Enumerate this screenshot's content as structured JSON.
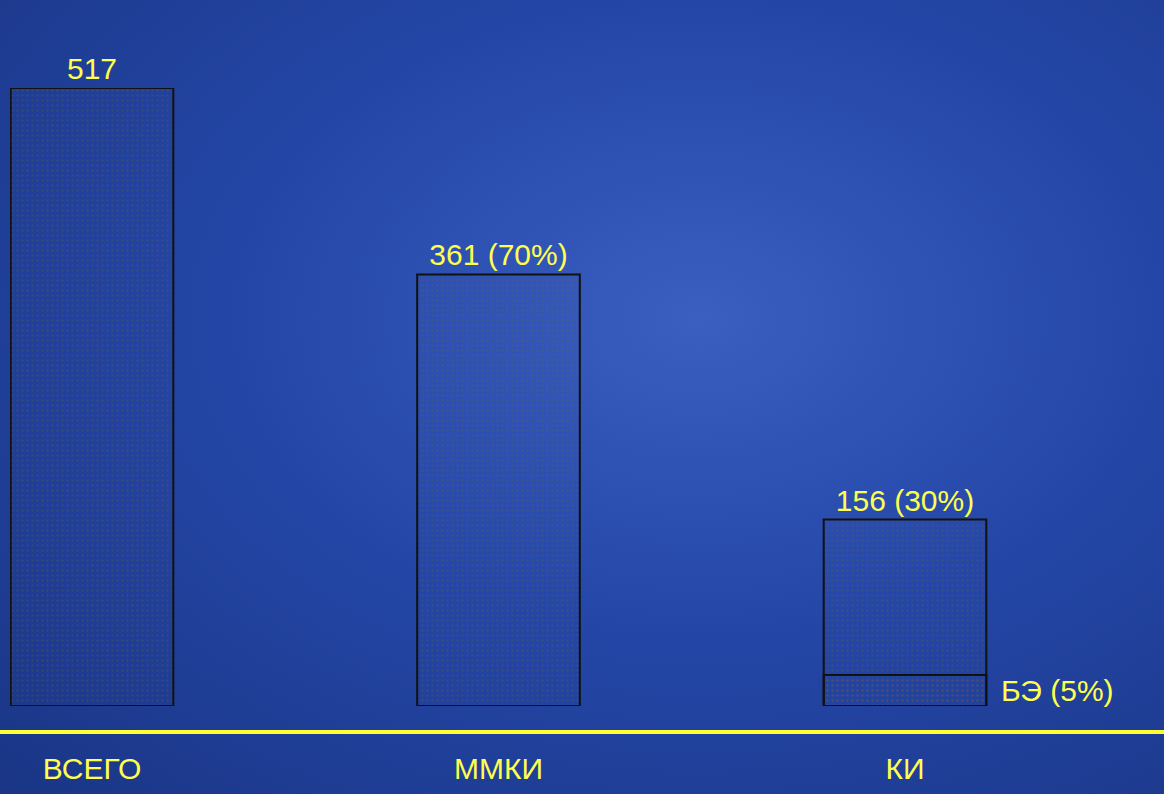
{
  "chart_data": {
    "type": "bar",
    "categories": [
      "ВСЕГО",
      "ММКИ",
      "КИ"
    ],
    "series": [
      {
        "values": [
          517,
          361,
          156
        ],
        "value_labels": [
          "517",
          "361 (70%)",
          "156 (30%)"
        ],
        "color": "#fbc89a"
      },
      {
        "name": "БЭ (5%)",
        "values": [
          null,
          null,
          26
        ],
        "color": "#8f8f8f"
      }
    ],
    "ylim": [
      0,
      517
    ],
    "stacked": false,
    "data_labels": true,
    "tick_labels": "x",
    "grid": false
  }
}
